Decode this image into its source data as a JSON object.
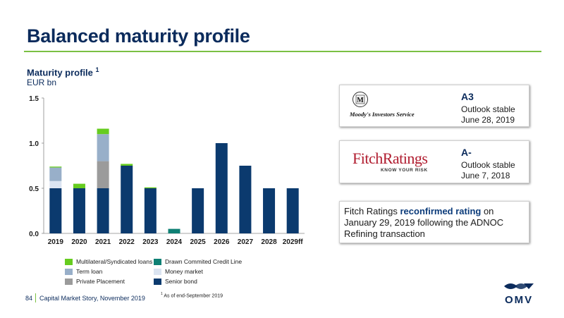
{
  "page": {
    "title": "Balanced maturity profile"
  },
  "chart_heading": {
    "title": "Maturity profile",
    "footnote_ref": "1",
    "unit": "EUR bn"
  },
  "chart_data": {
    "type": "bar",
    "stacked": true,
    "categories": [
      "2019",
      "2020",
      "2021",
      "2022",
      "2023",
      "2024",
      "2025",
      "2026",
      "2027",
      "2028",
      "2029ff"
    ],
    "ylim": [
      0,
      1.5
    ],
    "yticks": [
      "0.0",
      "0.5",
      "1.0",
      "1.5"
    ],
    "ytick_values": [
      0,
      0.5,
      1.0,
      1.5
    ],
    "grid": false,
    "legend_position": "bottom",
    "series": [
      {
        "name": "Senior bond",
        "color": "#0b3a6e",
        "values": [
          0.5,
          0.5,
          0.5,
          0.75,
          0.5,
          0,
          0.5,
          1.0,
          0.75,
          0.5,
          0.5
        ]
      },
      {
        "name": "Money market",
        "color": "#dbe4f1",
        "values": [
          0.08,
          0,
          0,
          0,
          0,
          0,
          0,
          0,
          0,
          0,
          0
        ]
      },
      {
        "name": "Private Placement",
        "color": "#9b9b9b",
        "values": [
          0,
          0,
          0.3,
          0,
          0,
          0,
          0,
          0,
          0,
          0,
          0
        ]
      },
      {
        "name": "Term loan",
        "color": "#98afc9",
        "values": [
          0.15,
          0,
          0.3,
          0,
          0,
          0,
          0,
          0,
          0,
          0,
          0
        ]
      },
      {
        "name": "Drawn Commited Credit Line",
        "color": "#0e8074",
        "values": [
          0,
          0,
          0,
          0,
          0,
          0.05,
          0,
          0,
          0,
          0,
          0
        ]
      },
      {
        "name": "Multilateral/Syndicated loans",
        "color": "#66cc1f",
        "values": [
          0.01,
          0.05,
          0.06,
          0.02,
          0.01,
          0,
          0,
          0,
          0,
          0,
          0
        ]
      }
    ],
    "legend_order": [
      "Multilateral/Syndicated loans",
      "Drawn Commited Credit Line",
      "Term loan",
      "Money market",
      "Private Placement",
      "Senior bond"
    ]
  },
  "ratings": {
    "moodys": {
      "logo_text": "Moody's Investors Service",
      "rating": "A3",
      "outlook": "Outlook stable",
      "date": "June 28, 2019"
    },
    "fitch": {
      "logo_text": "FitchRatings",
      "logo_tagline": "KNOW YOUR RISK",
      "rating": "A-",
      "outlook": "Outlook stable",
      "date": "June 7, 2018"
    },
    "statement": {
      "before": "Fitch Ratings ",
      "highlight": "reconfirmed rating",
      "after": " on January 29, 2019 following the ADNOC Refining transaction"
    }
  },
  "footer": {
    "page_number": "84",
    "text": "Capital Market Story, November 2019",
    "footnote_num": "1",
    "footnote_text": "As of end-September 2019",
    "logo_text": "OMV"
  }
}
